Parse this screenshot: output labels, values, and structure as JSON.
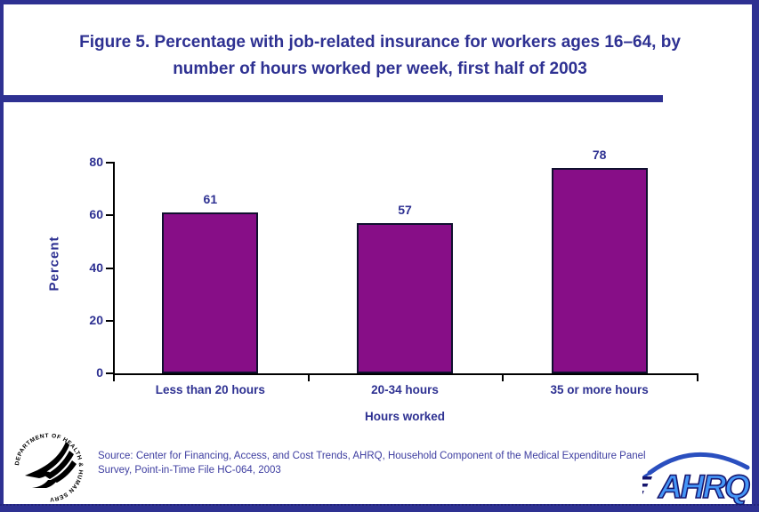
{
  "title": "Figure 5. Percentage with job-related insurance for workers ages 16–64, by number of hours worked per week, first half of 2003",
  "chart_data": {
    "type": "bar",
    "title": "Figure 5. Percentage with job-related insurance for workers ages 16–64, by number of hours worked per week, first half of 2003",
    "categories": [
      "Less than 20 hours",
      "20-34 hours",
      "35 or more hours"
    ],
    "values": [
      61,
      57,
      78
    ],
    "xlabel": "Hours worked",
    "ylabel": "Percent",
    "ylim": [
      0,
      80
    ],
    "yticks": [
      0,
      20,
      40,
      60,
      80
    ],
    "grid": false,
    "legend": false,
    "bar_color": "#870E87"
  },
  "source_note": "Source: Center for Financing, Access, and Cost Trends, AHRQ, Household Component of the Medical Expenditure Panel Survey, Point-in-Time File HC-064, 2003",
  "logos": {
    "hhs_seal_text": "DEPARTMENT OF HEALTH & HUMAN SERVICES · USA",
    "ahrq_label": "AHRQ"
  },
  "colors": {
    "accent_blue": "#2E3192",
    "bar_purple": "#870E87",
    "source_text": "#3D3DA0",
    "ahrq_blue": "#4596F7",
    "ahrq_outline": "#15156E"
  }
}
